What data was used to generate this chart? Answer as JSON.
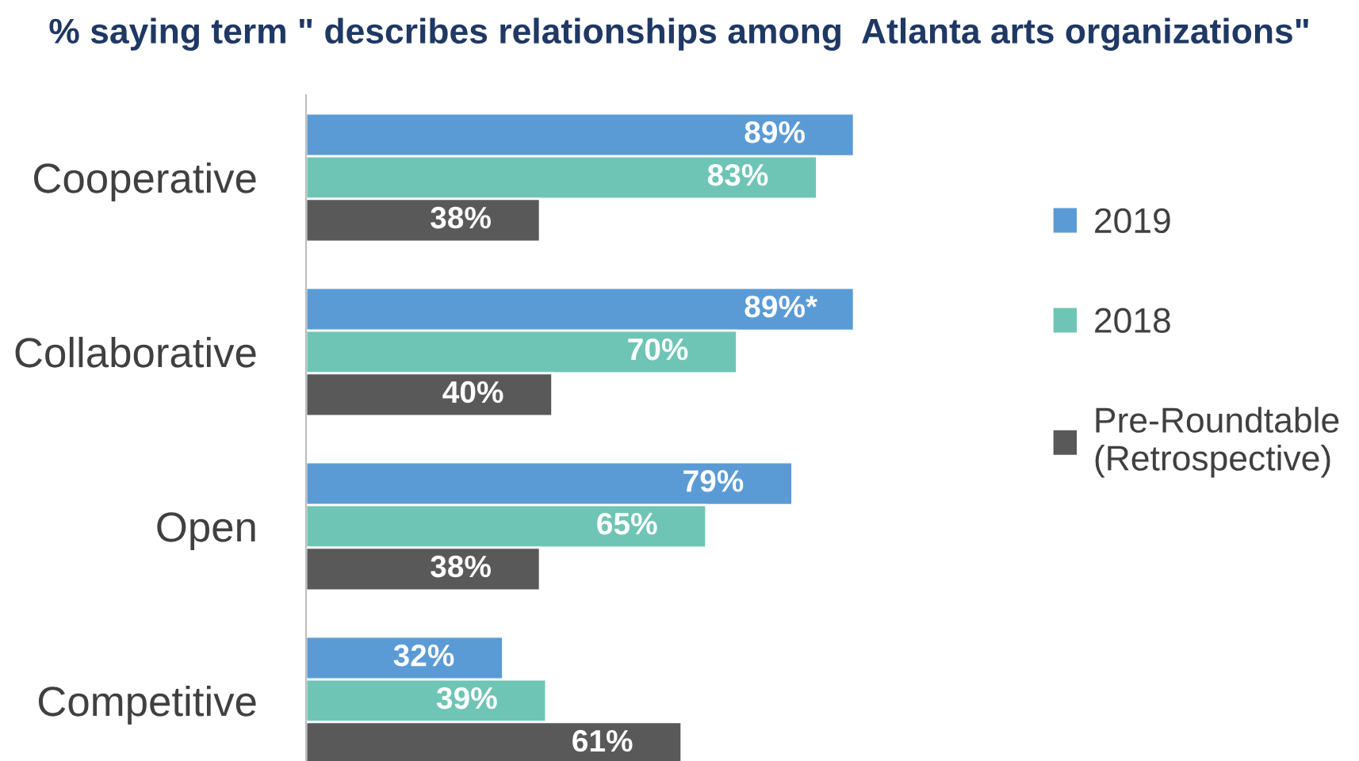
{
  "chart_data": {
    "type": "bar",
    "orientation": "horizontal",
    "title": "% saying term \" describes relationships among  Atlanta arts organizations\"",
    "categories": [
      "Cooperative",
      "Collaborative",
      "Open",
      "Competitive"
    ],
    "series": [
      {
        "name": "2019",
        "color": "#5b9bd5",
        "values": [
          89,
          89,
          79,
          32
        ],
        "value_labels": [
          "89%",
          "89%*",
          "79%",
          "32%"
        ]
      },
      {
        "name": "2018",
        "color": "#6fc5b5",
        "values": [
          83,
          70,
          65,
          39
        ],
        "value_labels": [
          "83%",
          "70%",
          "65%",
          "39%"
        ]
      },
      {
        "name": "Pre-Roundtable\n(Retrospective)",
        "color": "#595959",
        "values": [
          38,
          40,
          38,
          61
        ],
        "value_labels": [
          "38%",
          "40%",
          "38%",
          "61%"
        ]
      }
    ],
    "tick_labels": "y",
    "legend": "right",
    "grid": false
  }
}
